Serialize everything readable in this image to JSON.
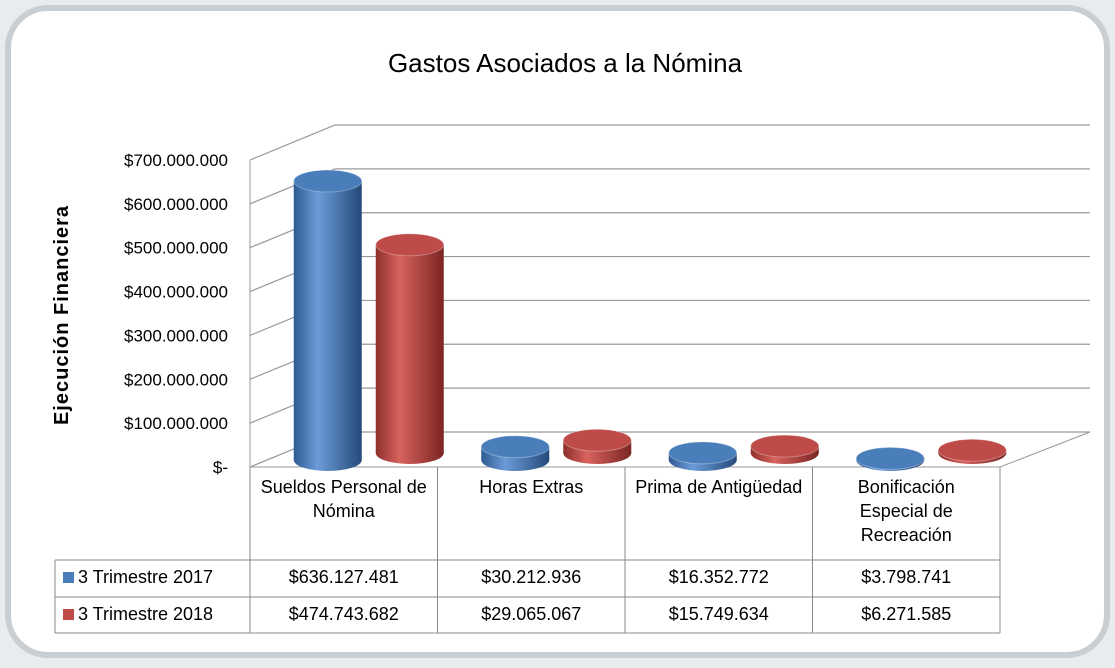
{
  "chart_data": {
    "type": "bar",
    "title": "Gastos Asociados a la Nómina",
    "y_label": "Ejecución Financiera",
    "categories": [
      "Sueldos Personal de Nómina",
      "Horas Extras",
      "Prima de Antigüedad",
      "Bonificación Especial de Recreación"
    ],
    "series": [
      {
        "name": "3 Trimestre 2017",
        "color": "#4a7ebb",
        "values": [
          636127481,
          30212936,
          16352772,
          3798741
        ],
        "value_labels": [
          "$636.127.481",
          "$30.212.936",
          "$16.352.772",
          "$3.798.741"
        ]
      },
      {
        "name": "3 Trimestre 2018",
        "color": "#be4b48",
        "values": [
          474743682,
          29065067,
          15749634,
          6271585
        ],
        "value_labels": [
          "$474.743.682",
          "$29.065.067",
          "$15.749.634",
          "$6.271.585"
        ]
      }
    ],
    "ylim": [
      0,
      700000000
    ],
    "yticks": [
      {
        "value": 0,
        "label": "$-"
      },
      {
        "value": 100000000,
        "label": "$100.000.000"
      },
      {
        "value": 200000000,
        "label": "$200.000.000"
      },
      {
        "value": 300000000,
        "label": "$300.000.000"
      },
      {
        "value": 400000000,
        "label": "$400.000.000"
      },
      {
        "value": 500000000,
        "label": "$500.000.000"
      },
      {
        "value": 600000000,
        "label": "$600.000.000"
      },
      {
        "value": 700000000,
        "label": "$700.000.000"
      }
    ],
    "grid": true
  }
}
